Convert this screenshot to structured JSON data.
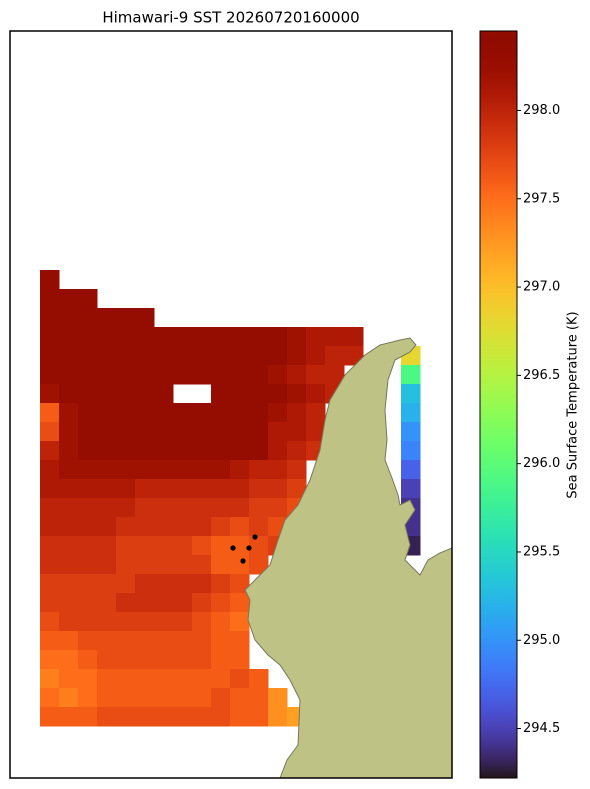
{
  "chart_data": {
    "type": "heatmap",
    "title": "Himawari-9 SST 20260720160000",
    "colorbar_label": "Sea Surface Temperature (K)",
    "colormap": "turbo",
    "clim": [
      294.22,
      298.45
    ],
    "cticks": [
      294.5,
      {
        "value": 295,
        "label": "295.0"
      },
      295.5,
      {
        "value": 296,
        "label": "296.0"
      },
      296.5,
      {
        "value": 297,
        "label": "297.0"
      },
      297.5,
      {
        "value": 298,
        "label": "298.0"
      }
    ],
    "values": [
      [
        298.3,
        null,
        null,
        null,
        null,
        null,
        null,
        null,
        null,
        null,
        null,
        null,
        null,
        null,
        null,
        null,
        null,
        null,
        null,
        null
      ],
      [
        298.3,
        298.3,
        298.3,
        null,
        null,
        null,
        null,
        null,
        null,
        null,
        null,
        null,
        null,
        null,
        null,
        null,
        null,
        null,
        null,
        null
      ],
      [
        298.3,
        298.3,
        298.3,
        298.3,
        298.3,
        298.3,
        null,
        null,
        null,
        null,
        null,
        null,
        null,
        null,
        null,
        null,
        null,
        null,
        null,
        null
      ],
      [
        298.3,
        298.3,
        298.3,
        298.3,
        298.3,
        298.3,
        298.3,
        298.3,
        298.3,
        298.3,
        298.3,
        298.3,
        298.3,
        298.2,
        298.1,
        298.1,
        298.1,
        null,
        null,
        null
      ],
      [
        298.3,
        298.3,
        298.3,
        298.3,
        298.3,
        298.3,
        298.3,
        298.3,
        298.3,
        298.3,
        298.3,
        298.3,
        298.3,
        298.2,
        298.1,
        298.0,
        298.0,
        null,
        null,
        296.8
      ],
      [
        298.3,
        298.3,
        298.3,
        298.3,
        298.3,
        298.3,
        298.3,
        298.3,
        298.3,
        298.3,
        298.3,
        298.3,
        298.2,
        298.1,
        298.0,
        298.0,
        null,
        null,
        null,
        295.9
      ],
      [
        298.2,
        298.3,
        298.3,
        298.3,
        298.3,
        298.3,
        298.3,
        null,
        null,
        298.3,
        298.3,
        298.3,
        298.3,
        298.2,
        298.1,
        298.0,
        null,
        null,
        null,
        295.3
      ],
      [
        297.6,
        298.2,
        298.3,
        298.3,
        298.3,
        298.3,
        298.3,
        298.3,
        298.3,
        298.3,
        298.3,
        298.3,
        298.2,
        298.1,
        298.0,
        null,
        null,
        null,
        null,
        295.2
      ],
      [
        297.7,
        298.2,
        298.3,
        298.3,
        298.3,
        298.3,
        298.3,
        298.3,
        298.3,
        298.3,
        298.3,
        298.3,
        298.1,
        298.1,
        298.0,
        null,
        null,
        null,
        null,
        295.0
      ],
      [
        298.0,
        298.2,
        298.3,
        298.3,
        298.3,
        298.3,
        298.3,
        298.3,
        298.3,
        298.3,
        298.3,
        298.3,
        298.1,
        298.0,
        297.9,
        null,
        null,
        null,
        null,
        294.9
      ],
      [
        298.1,
        298.2,
        298.2,
        298.2,
        298.2,
        298.2,
        298.2,
        298.2,
        298.2,
        298.2,
        298.1,
        298.0,
        298.0,
        297.9,
        null,
        null,
        null,
        null,
        null,
        294.7
      ],
      [
        298.1,
        298.1,
        298.1,
        298.1,
        298.1,
        298.0,
        298.0,
        298.0,
        298.0,
        298.0,
        298.0,
        297.9,
        297.9,
        297.8,
        null,
        null,
        null,
        null,
        null,
        294.5
      ],
      [
        298.0,
        298.0,
        298.0,
        298.0,
        298.0,
        297.9,
        297.9,
        297.9,
        297.9,
        297.9,
        297.9,
        297.8,
        297.8,
        297.7,
        null,
        null,
        null,
        null,
        null,
        294.4
      ],
      [
        298.0,
        298.0,
        298.0,
        298.0,
        297.9,
        297.9,
        297.9,
        297.9,
        297.9,
        297.8,
        297.7,
        297.8,
        297.7,
        null,
        null,
        null,
        null,
        null,
        null,
        294.4
      ],
      [
        297.9,
        297.9,
        297.9,
        297.9,
        297.8,
        297.8,
        297.8,
        297.8,
        297.7,
        297.6,
        297.6,
        297.7,
        297.8,
        null,
        null,
        null,
        null,
        null,
        null,
        294.3
      ],
      [
        297.9,
        297.9,
        297.9,
        297.9,
        297.8,
        297.8,
        297.8,
        297.8,
        297.8,
        297.6,
        297.6,
        297.7,
        null,
        null,
        null,
        null,
        null,
        null,
        null,
        null
      ],
      [
        297.8,
        297.8,
        297.8,
        297.8,
        297.8,
        297.9,
        297.9,
        297.9,
        297.9,
        297.8,
        297.7,
        null,
        null,
        null,
        null,
        null,
        null,
        null,
        null,
        null
      ],
      [
        297.8,
        297.8,
        297.8,
        297.8,
        297.9,
        297.9,
        297.9,
        297.9,
        297.8,
        297.7,
        297.6,
        null,
        null,
        null,
        null,
        null,
        null,
        null,
        null,
        null
      ],
      [
        297.7,
        297.8,
        297.8,
        297.8,
        297.8,
        297.8,
        297.8,
        297.8,
        297.7,
        297.6,
        297.5,
        null,
        null,
        null,
        null,
        null,
        null,
        null,
        null,
        null
      ],
      [
        297.6,
        297.6,
        297.7,
        297.7,
        297.7,
        297.7,
        297.7,
        297.7,
        297.7,
        297.6,
        297.6,
        null,
        null,
        null,
        null,
        null,
        null,
        null,
        null,
        null
      ],
      [
        297.5,
        297.5,
        297.6,
        297.7,
        297.7,
        297.7,
        297.7,
        297.7,
        297.7,
        297.6,
        297.6,
        null,
        null,
        null,
        null,
        null,
        null,
        null,
        null,
        null
      ],
      [
        297.4,
        297.5,
        297.5,
        297.6,
        297.6,
        297.6,
        297.6,
        297.6,
        297.6,
        297.6,
        297.7,
        297.6,
        null,
        null,
        null,
        null,
        null,
        null,
        null,
        null
      ],
      [
        297.5,
        297.4,
        297.5,
        297.6,
        297.6,
        297.6,
        297.6,
        297.6,
        297.6,
        297.7,
        297.6,
        297.6,
        297.3,
        null,
        null,
        null,
        null,
        null,
        null,
        null
      ],
      [
        297.6,
        297.6,
        297.6,
        297.7,
        297.7,
        297.7,
        297.7,
        297.7,
        297.7,
        297.7,
        297.6,
        297.6,
        297.3,
        297.2,
        null,
        null,
        null,
        null,
        null,
        null
      ]
    ]
  }
}
